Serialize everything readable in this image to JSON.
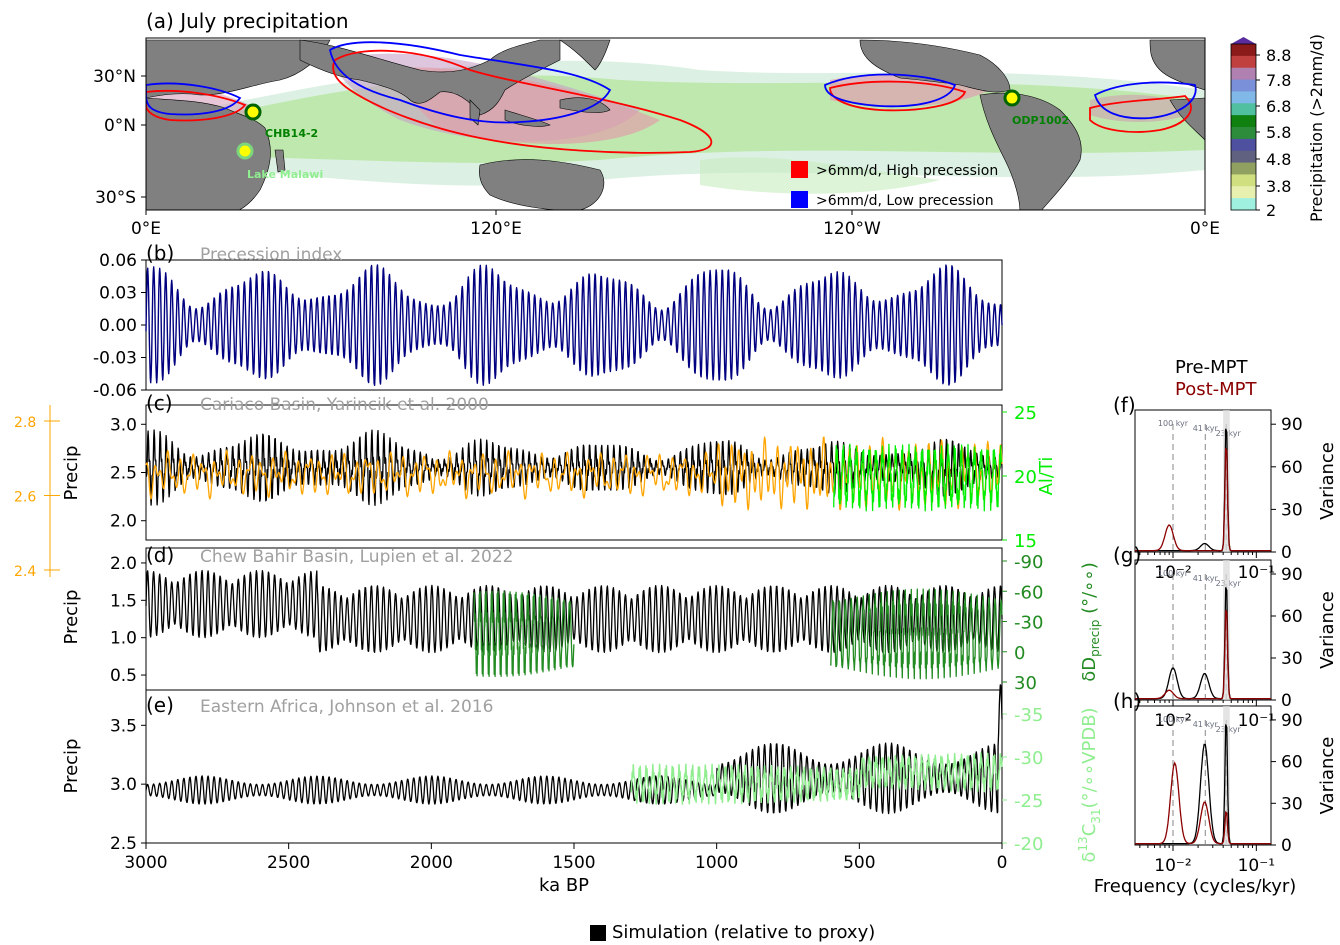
{
  "map": {
    "title": "(a) July precipitation",
    "lat_ticks": [
      "30°N",
      "0°N",
      "30°S"
    ],
    "lon_ticks": [
      "0°E",
      "120°E",
      "120°W",
      "0°E"
    ],
    "sites": [
      "CHB14-2",
      "Lake Malawi",
      "ODP1002"
    ],
    "legend": [
      {
        "label": ">6mm/d, High precession",
        "color": "#ff0000"
      },
      {
        "label": ">6mm/d, Low precession",
        "color": "#0000ff"
      }
    ],
    "colorbar": {
      "label": "Precipitation (>2mm/d)",
      "ticks": [
        "8.8",
        "7.8",
        "6.8",
        "5.8",
        "4.8",
        "3.8",
        "2"
      ]
    }
  },
  "colors": {
    "precession": "#000080",
    "simulation": "#000000",
    "cariaco_proxy": "#00ee00",
    "cariaco_second": "#ffa500",
    "chew_bahir_proxy": "#228b22",
    "east_africa_proxy": "#90ee90",
    "pre_mpt": "#000000",
    "post_mpt": "#8b0000",
    "label_gray": "#a0a0a0"
  },
  "chart_data": [
    {
      "panel": "b",
      "type": "line",
      "label": "(b)",
      "title": "Precession index",
      "xlabel": "ka BP",
      "ylabel": "",
      "xlim": [
        3000,
        0
      ],
      "ylim": [
        -0.06,
        0.06
      ],
      "yticks": [
        "0.06",
        "0.03",
        "0.00",
        "-0.03",
        "-0.06"
      ],
      "xticks": [
        "3000",
        "2500",
        "2000",
        "1500",
        "1000",
        "500",
        "0"
      ],
      "series": [
        {
          "name": "",
          "period_kyr": 21,
          "amplitude_max": 0.055,
          "envelope_period_kyr": 400
        }
      ]
    },
    {
      "panel": "c",
      "type": "line",
      "label": "(c)",
      "title": "Cariaco Basin, Yarincik et al. 2000",
      "ylabel": "Precip",
      "ylim": [
        1.8,
        3.2
      ],
      "yticks": [
        "3.0",
        "2.5",
        "2.0"
      ],
      "y2label": "Al/Ti",
      "y2ticks": [
        "25",
        "20",
        "15"
      ],
      "y2lim": [
        15,
        25
      ],
      "y3ticks": [
        "2.8",
        "2.6",
        "2.4"
      ],
      "y3lim": [
        2.35,
        2.85
      ],
      "proxy_range_ka": [
        590,
        0
      ]
    },
    {
      "panel": "d",
      "type": "line",
      "label": "(d)",
      "title": "Chew Bahir Basin, Lupien et al. 2022",
      "ylabel": "Precip",
      "ylim": [
        0.3,
        2.2
      ],
      "yticks": [
        "2.0",
        "1.5",
        "1.0",
        "0.5"
      ],
      "y2label": "δD",
      "y2label_sub": "precip",
      "y2label_unit": " (°/∘∘)",
      "y2ticks": [
        "-90",
        "-60",
        "-30",
        "0",
        "30"
      ],
      "proxy_ranges_ka": [
        [
          1850,
          1500
        ],
        [
          600,
          0
        ]
      ]
    },
    {
      "panel": "e",
      "type": "line",
      "label": "(e)",
      "title": "Eastern Africa, Johnson et al. 2016",
      "ylabel": "Precip",
      "ylim": [
        2.5,
        3.8
      ],
      "yticks": [
        "3.5",
        "3.0",
        "2.5"
      ],
      "y2label": "δ",
      "y2label_sup": "13",
      "y2label_tail": "C",
      "y2label_sub": "31",
      "y2label_unit": "(°/∘∘VPDB)",
      "y2ticks": [
        "-35",
        "-30",
        "-25",
        "-20"
      ],
      "proxy_range_ka": [
        1300,
        0
      ]
    },
    {
      "panel": "f",
      "type": "line",
      "label": "(f)",
      "xlabel": "Frequency (cycles/kyr)",
      "ylabel": "Variance",
      "xscale": "log",
      "xlim": [
        0.0035,
        0.15
      ],
      "ylim": [
        0,
        100
      ],
      "yticks": [
        "90",
        "60",
        "30",
        "0"
      ],
      "xticks": [
        "10⁻²",
        "10⁻¹"
      ],
      "period_markers": [
        {
          "label": "100 kyr",
          "freq": 0.01
        },
        {
          "label": "41 kyr",
          "freq": 0.0244
        },
        {
          "label": "23 kyr",
          "freq": 0.0435
        }
      ],
      "series": [
        {
          "name": "Pre-MPT",
          "peaks": [
            {
              "freq": 0.0435,
              "value": 95
            },
            {
              "freq": 0.024,
              "value": 5
            }
          ]
        },
        {
          "name": "Post-MPT",
          "peaks": [
            {
              "freq": 0.0435,
              "value": 80
            },
            {
              "freq": 0.009,
              "value": 18
            }
          ]
        }
      ]
    },
    {
      "panel": "g",
      "type": "line",
      "label": "(g)",
      "ylabel": "Variance",
      "xscale": "log",
      "ylim": [
        0,
        100
      ],
      "yticks": [
        "90",
        "60",
        "30",
        "0"
      ],
      "series": [
        {
          "name": "Pre-MPT",
          "peaks": [
            {
              "freq": 0.0435,
              "value": 88
            },
            {
              "freq": 0.024,
              "value": 18
            },
            {
              "freq": 0.01,
              "value": 22
            }
          ]
        },
        {
          "name": "Post-MPT",
          "peaks": [
            {
              "freq": 0.0435,
              "value": 70
            },
            {
              "freq": 0.009,
              "value": 6
            }
          ]
        }
      ]
    },
    {
      "panel": "h",
      "type": "line",
      "label": "(h)",
      "ylabel": "Variance",
      "xscale": "log",
      "ylim": [
        0,
        100
      ],
      "yticks": [
        "90",
        "60",
        "30",
        "0"
      ],
      "series": [
        {
          "name": "Pre-MPT",
          "peaks": [
            {
              "freq": 0.0435,
              "value": 95
            },
            {
              "freq": 0.024,
              "value": 72
            }
          ]
        },
        {
          "name": "Post-MPT",
          "peaks": [
            {
              "freq": 0.0435,
              "value": 25
            },
            {
              "freq": 0.024,
              "value": 30
            },
            {
              "freq": 0.0105,
              "value": 58
            }
          ]
        }
      ]
    }
  ],
  "spectral_legend": [
    "Pre-MPT",
    "Post-MPT"
  ],
  "bottom_legend": "Simulation (relative to proxy)"
}
